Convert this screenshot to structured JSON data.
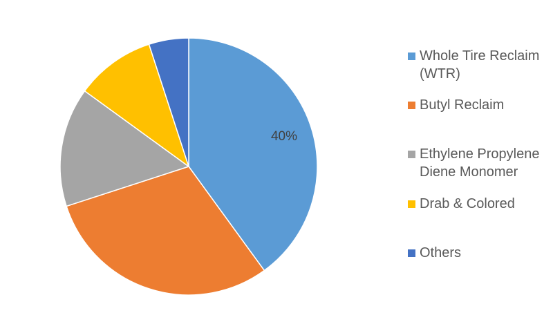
{
  "chart_data": {
    "type": "pie",
    "title": "",
    "categories": [
      "Whole Tire Reclaim (WTR)",
      "Butyl Reclaim",
      "Ethylene Propylene Diene Monomer",
      "Drab & Colored",
      "Others"
    ],
    "values": [
      40,
      30,
      15,
      10,
      5
    ],
    "colors": [
      "#5b9bd5",
      "#ed7d31",
      "#a5a5a5",
      "#ffc000",
      "#4472c4"
    ],
    "data_labels": [
      "40%",
      "",
      "",
      "",
      ""
    ],
    "legend_position": "right"
  }
}
